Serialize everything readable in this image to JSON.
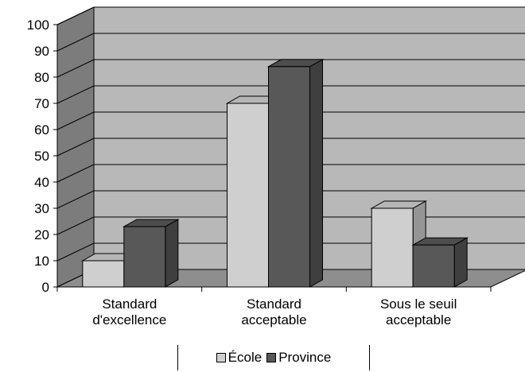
{
  "chart_data": {
    "type": "bar",
    "style": "3d-clustered",
    "categories": [
      [
        "Standard",
        "d'excellence"
      ],
      [
        "Standard",
        "acceptable"
      ],
      [
        "Sous le seuil",
        "acceptable"
      ]
    ],
    "series": [
      {
        "name": "École",
        "values": [
          10,
          70,
          30
        ],
        "color": "#cfcfcf"
      },
      {
        "name": "Province",
        "values": [
          23,
          84,
          16
        ],
        "color": "#585858"
      }
    ],
    "yticks": [
      0,
      10,
      20,
      30,
      40,
      50,
      60,
      70,
      80,
      90,
      100
    ],
    "ylim": [
      0,
      100
    ],
    "grid": true,
    "legend_position": "bottom",
    "colors": {
      "wall": "#b8b8b8",
      "floor": "#8e8e8e",
      "side_wall": "#7c7c7c"
    }
  },
  "legend": {
    "items": [
      {
        "label": "École",
        "color": "#cfcfcf"
      },
      {
        "label": "Province",
        "color": "#585858"
      }
    ]
  }
}
